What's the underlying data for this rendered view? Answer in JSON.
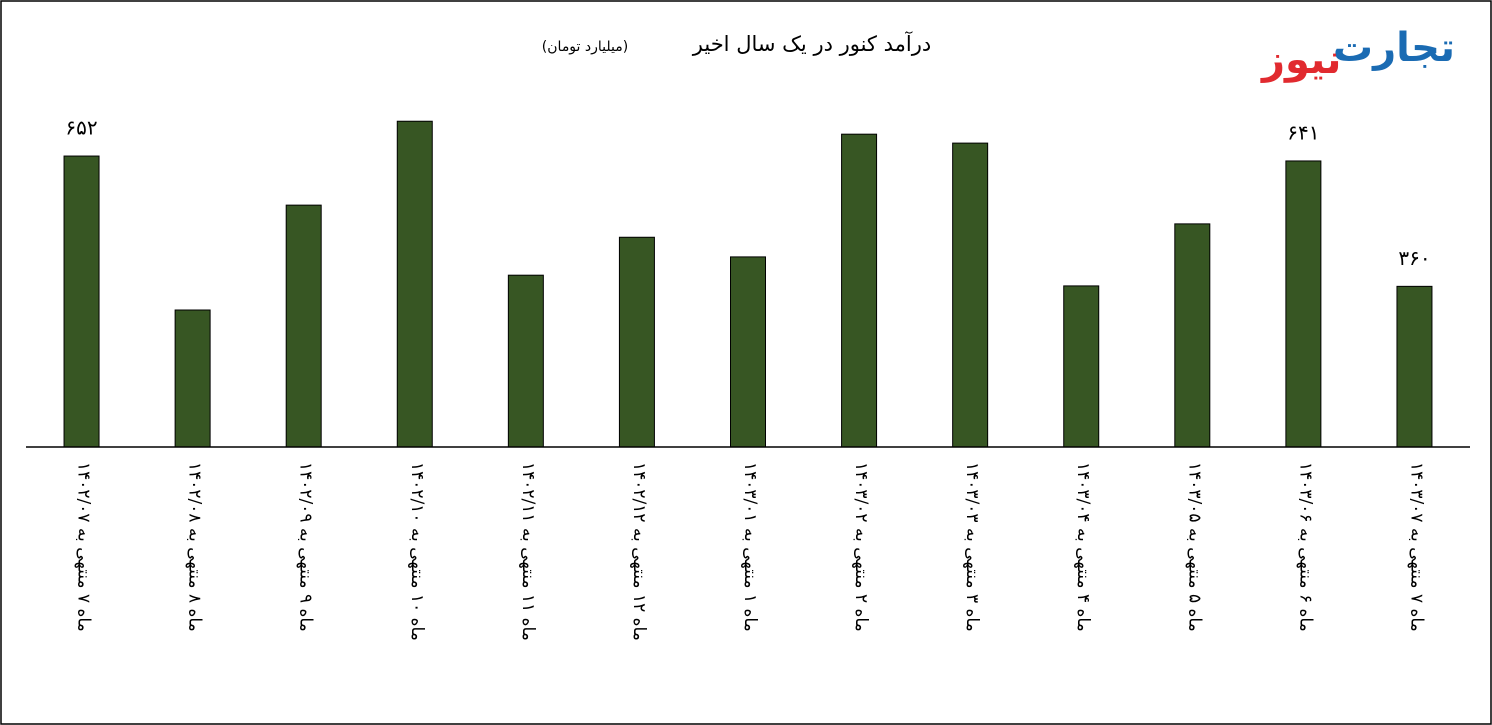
{
  "chart_data": {
    "type": "bar",
    "title": "درآمد کنور در یک سال اخیر",
    "subtitle": "(میلیارد تومان)",
    "logo": {
      "brand": "تجارت",
      "brand_accent": "نیوز"
    },
    "categories": [
      "ماه ۷ منتهی به ۱۴۰۲/۰۷",
      "ماه ۸ منتهی به ۱۴۰۲/۰۸",
      "ماه ۹ منتهی به ۱۴۰۲/۰۹",
      "ماه ۱۰ منتهی به ۱۴۰۲/۱۰",
      "ماه ۱۱ منتهی به ۱۴۰۲/۱۱",
      "ماه ۱۲ منتهی به ۱۴۰۲/۱۲",
      "ماه ۱ منتهی به ۱۴۰۳/۰۱",
      "ماه ۲ منتهی به ۱۴۰۳/۰۲",
      "ماه ۳ منتهی به ۱۴۰۳/۰۳",
      "ماه ۴ منتهی به ۱۴۰۳/۰۴",
      "ماه ۵ منتهی به ۱۴۰۳/۰۵",
      "ماه ۶ منتهی به ۱۴۰۳/۰۶",
      "ماه ۷ منتهی به ۱۴۰۳/۰۷"
    ],
    "values": [
      652,
      307,
      542,
      730,
      385,
      470,
      426,
      701,
      681,
      361,
      500,
      641,
      360
    ],
    "value_labels": [
      "۶۵۲",
      null,
      null,
      null,
      null,
      null,
      null,
      null,
      null,
      null,
      null,
      "۶۴۱",
      "۳۶۰"
    ],
    "color": "#375623",
    "ylim": [
      0,
      800
    ]
  }
}
